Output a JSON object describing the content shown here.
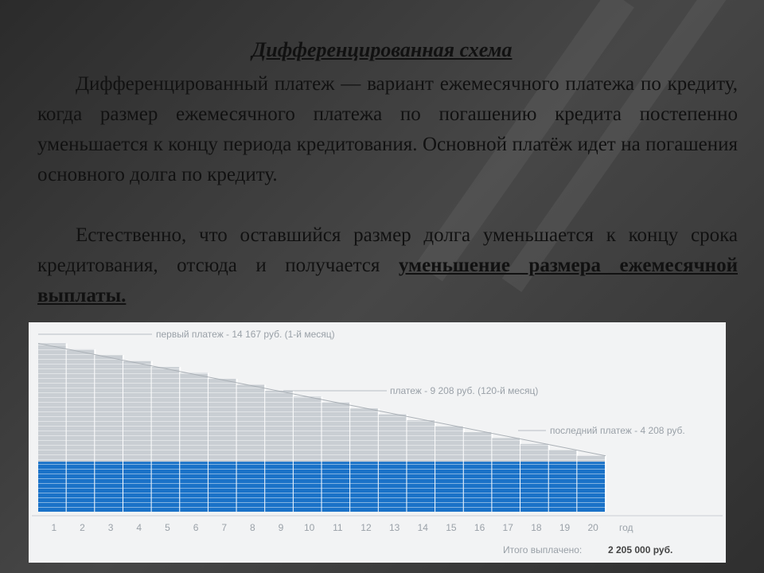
{
  "heading": "Дифференцированная схема",
  "paragraph1": "Дифференцированный платеж — вариант ежемесячного платежа по кредиту, когда размер ежемесячного платежа по погашению кредита постепенно уменьшается к концу периода кредитования. Основной платёж идет на погашения основного долга по кредиту.",
  "paragraph2_text": "Естественно, что оставшийся размер долга уменьшается к концу срока кредитования, отсюда и получается ",
  "paragraph2_emphasis": "уменьшение размера ежемесячной выплаты.",
  "colors": {
    "principal": "#1a72c8",
    "interest": "#c9ced3",
    "panel": "#f2f3f4"
  },
  "chart_data": {
    "type": "bar",
    "title": "",
    "xlabel": "год",
    "ylabel": "",
    "categories": [
      "1",
      "2",
      "3",
      "4",
      "5",
      "6",
      "7",
      "8",
      "9",
      "10",
      "11",
      "12",
      "13",
      "14",
      "15",
      "16",
      "17",
      "18",
      "19",
      "20"
    ],
    "ylim": [
      0,
      15000
    ],
    "series": [
      {
        "name": "",
        "values": [
          4208,
          4208,
          4208,
          4208,
          4208,
          4208,
          4208,
          4208,
          4208,
          4208,
          4208,
          4208,
          4208,
          4208,
          4208,
          4208,
          4208,
          4208,
          4208,
          4208
        ]
      },
      {
        "name": "",
        "values": [
          9959,
          9461,
          8963,
          8465,
          7967,
          7469,
          6971,
          6473,
          5975,
          5477,
          4979,
          4481,
          3983,
          3485,
          2987,
          2489,
          1991,
          1493,
          995,
          497
        ]
      }
    ],
    "annotations": [
      {
        "text": "первый платеж - 14 167 руб. (1-й месяц)",
        "x": "1",
        "y": 14167
      },
      {
        "text": "платеж - 9 208 руб. (120-й месяц)",
        "x": "10",
        "y": 9208
      },
      {
        "text": "последний платеж - 4 208 руб.",
        "x": "20",
        "y": 4208
      }
    ],
    "total_label": "Итого выплачено:",
    "total_value": "2 205 000 руб."
  }
}
